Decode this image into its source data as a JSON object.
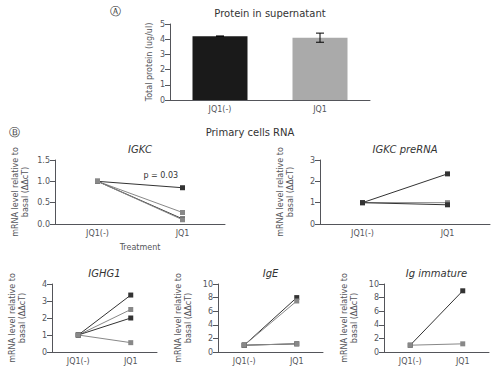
{
  "chart_data": [
    {
      "type": "bar",
      "title": "Protein in supernatant",
      "categories": [
        "JQ1(-)",
        "JQ1"
      ],
      "values": [
        4.2,
        4.1
      ],
      "errors": [
        0.0,
        0.3
      ],
      "colors": [
        "#1a1a1a",
        "#aaaaaa"
      ],
      "ylabel": "Total protein (ug/ul)",
      "ylim": [
        0,
        5
      ],
      "yticks": [
        0,
        1,
        2,
        3,
        4,
        5
      ],
      "grid": false,
      "annotations": [
        "Ⓐ"
      ]
    },
    {
      "type": "line",
      "title": "IGKC",
      "categories": [
        "JQ1(-)",
        "JQ1"
      ],
      "series": [
        {
          "color": "#333333",
          "values": [
            1.0,
            0.85
          ]
        },
        {
          "color": "#888888",
          "values": [
            1.0,
            0.27
          ]
        },
        {
          "color": "#333333",
          "values": [
            1.0,
            0.12
          ]
        },
        {
          "color": "#888888",
          "values": [
            1.0,
            0.1
          ]
        }
      ],
      "marker": "square",
      "xlabel": "Treatment",
      "ylabel": "mRNA level relative to\nbasal (ΔΔcT)",
      "ylim": [
        0.0,
        1.5
      ],
      "yticks": [
        {
          "value": 0.0,
          "label": "0.0"
        },
        0.5,
        {
          "value": 1.0,
          "label": "1.0"
        },
        1.5
      ],
      "grid": false,
      "annotations": [
        "Ⓑ",
        "Primary cells RNA",
        "p = 0.03"
      ]
    },
    {
      "type": "line",
      "title": "IGKC preRNA",
      "categories": [
        "JQ1(-)",
        "JQ1"
      ],
      "series": [
        {
          "color": "#333333",
          "values": [
            1.0,
            2.35
          ]
        },
        {
          "color": "#888888",
          "values": [
            1.0,
            1.0
          ]
        },
        {
          "color": "#333333",
          "values": [
            1.0,
            0.9
          ]
        }
      ],
      "marker": "square",
      "ylabel": "mRNA level relative to\nbasal (ΔΔcT)",
      "ylim": [
        0,
        3
      ],
      "yticks": [
        0,
        1,
        2,
        3
      ],
      "grid": false
    },
    {
      "type": "line",
      "title": "IGHG1",
      "categories": [
        "JQ1(-)",
        "JQ1"
      ],
      "series": [
        {
          "color": "#333333",
          "values": [
            1.0,
            3.35
          ]
        },
        {
          "color": "#888888",
          "values": [
            1.0,
            2.5
          ]
        },
        {
          "color": "#333333",
          "values": [
            1.0,
            2.0
          ]
        },
        {
          "color": "#888888",
          "values": [
            1.0,
            0.55
          ]
        }
      ],
      "marker": "square",
      "ylabel": "mRNA level relative to\nbasal (ΔΔcT)",
      "ylim": [
        0,
        4
      ],
      "yticks": [
        0,
        1,
        2,
        3,
        4
      ],
      "grid": false
    },
    {
      "type": "line",
      "title": "IgE",
      "categories": [
        "JQ1(-)",
        "JQ1"
      ],
      "series": [
        {
          "color": "#333333",
          "values": [
            1.0,
            8.0
          ]
        },
        {
          "color": "#888888",
          "values": [
            1.0,
            7.5
          ]
        },
        {
          "color": "#333333",
          "values": [
            1.0,
            1.2
          ]
        },
        {
          "color": "#888888",
          "values": [
            1.0,
            1.2
          ]
        }
      ],
      "marker": "square",
      "ylabel": "mRNA level relative to\nbasal (ΔΔcT)",
      "ylim": [
        0,
        10
      ],
      "yticks": [
        0,
        2,
        4,
        6,
        8,
        10
      ],
      "grid": false
    },
    {
      "type": "line",
      "title": "Ig immature",
      "categories": [
        "JQ1(-)",
        "JQ1"
      ],
      "series": [
        {
          "color": "#333333",
          "values": [
            1.0,
            9.0
          ]
        },
        {
          "color": "#888888",
          "values": [
            1.0,
            1.2
          ]
        }
      ],
      "marker": "square",
      "ylabel": "mRNA level relative to\nbasal (ΔΔcT)",
      "ylim": [
        0,
        10
      ],
      "yticks": [
        0,
        2,
        4,
        6,
        8,
        10
      ],
      "grid": false
    }
  ]
}
